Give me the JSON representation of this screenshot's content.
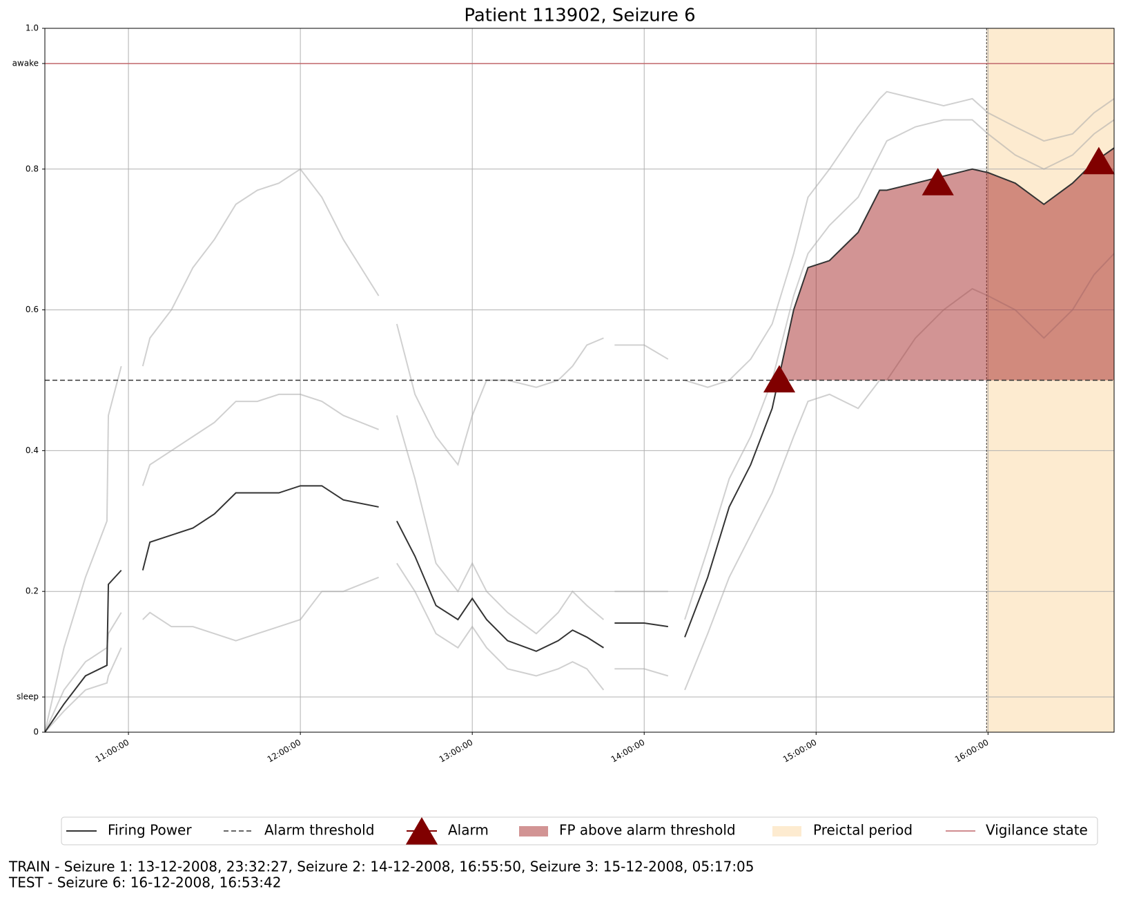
{
  "chart_data": {
    "type": "line",
    "title": "Patient 113902, Seizure 6",
    "x": [
      "10:30:50",
      "10:37:30",
      "10:45:00",
      "10:52:30",
      "10:53:00",
      "10:57:30",
      "11:01:00",
      "11:05:00",
      "11:07:30",
      "11:15:00",
      "11:22:30",
      "11:30:00",
      "11:37:30",
      "11:45:00",
      "11:52:30",
      "12:00:00",
      "12:07:30",
      "12:15:00",
      "12:27:20",
      "12:30:00",
      "12:33:40",
      "12:40:00",
      "12:47:20",
      "12:55:00",
      "13:00:00",
      "13:05:00",
      "13:12:20",
      "13:22:20",
      "13:30:00",
      "13:35:00",
      "13:40:00",
      "13:45:50",
      "13:47:40",
      "13:49:40",
      "14:00:00",
      "14:08:20",
      "14:11:00",
      "14:14:10",
      "14:22:10",
      "14:29:40",
      "14:37:10",
      "14:44:40",
      "14:52:10",
      "14:57:10",
      "15:04:40",
      "15:14:40",
      "15:22:10",
      "15:24:40",
      "15:34:40",
      "15:44:30",
      "15:54:30",
      "16:00:00",
      "16:09:30",
      "16:19:30",
      "16:29:30",
      "16:37:00",
      "16:44:00"
    ],
    "series": [
      {
        "name": "Firing Power",
        "color": "#333333",
        "values": [
          0.0,
          0.04,
          0.08,
          0.095,
          0.21,
          0.23,
          null,
          0.23,
          0.27,
          0.28,
          0.29,
          0.31,
          0.34,
          0.34,
          0.34,
          0.35,
          0.35,
          0.33,
          0.32,
          null,
          0.3,
          0.25,
          0.18,
          0.16,
          0.19,
          0.16,
          0.13,
          0.115,
          0.13,
          0.145,
          0.135,
          0.12,
          null,
          0.155,
          0.155,
          0.15,
          null,
          0.135,
          0.22,
          0.32,
          0.38,
          0.46,
          0.6,
          0.66,
          0.67,
          0.71,
          0.77,
          0.77,
          0.78,
          0.79,
          0.8,
          0.795,
          0.78,
          0.75,
          0.78,
          0.81,
          0.83
        ]
      }
    ],
    "ensemble_color": "#aaaaaa",
    "ensemble": [
      [
        0.0,
        0.12,
        0.22,
        0.3,
        0.45,
        0.52,
        null,
        0.52,
        0.56,
        0.6,
        0.66,
        0.7,
        0.75,
        0.77,
        0.78,
        0.8,
        0.76,
        0.7,
        0.62,
        null,
        0.58,
        0.48,
        0.42,
        0.38,
        0.45,
        0.5,
        0.5,
        0.49,
        0.5,
        0.52,
        0.55,
        0.56,
        null,
        0.55,
        0.55,
        0.53,
        null,
        0.5,
        0.49,
        0.5,
        0.53,
        0.58,
        0.68,
        0.76,
        0.8,
        0.86,
        0.9,
        0.91,
        0.9,
        0.89,
        0.9,
        0.88,
        0.86,
        0.84,
        0.85,
        0.88,
        0.9
      ],
      [
        0.0,
        0.06,
        0.1,
        0.12,
        0.14,
        0.17,
        null,
        0.35,
        0.38,
        0.4,
        0.42,
        0.44,
        0.47,
        0.47,
        0.48,
        0.48,
        0.47,
        0.45,
        0.43,
        null,
        0.45,
        0.36,
        0.24,
        0.2,
        0.24,
        0.2,
        0.17,
        0.14,
        0.17,
        0.2,
        0.18,
        0.16,
        null,
        0.2,
        0.2,
        0.2,
        null,
        0.16,
        0.26,
        0.36,
        0.42,
        0.5,
        0.62,
        0.68,
        0.72,
        0.76,
        0.82,
        0.84,
        0.86,
        0.87,
        0.87,
        0.85,
        0.82,
        0.8,
        0.82,
        0.85,
        0.87
      ],
      [
        0.0,
        0.03,
        0.06,
        0.07,
        0.08,
        0.12,
        null,
        0.16,
        0.17,
        0.15,
        0.15,
        0.14,
        0.13,
        0.14,
        0.15,
        0.16,
        0.2,
        0.2,
        0.22,
        null,
        0.24,
        0.2,
        0.14,
        0.12,
        0.15,
        0.12,
        0.09,
        0.08,
        0.09,
        0.1,
        0.09,
        0.06,
        null,
        0.09,
        0.09,
        0.08,
        null,
        0.06,
        0.14,
        0.22,
        0.28,
        0.34,
        0.42,
        0.47,
        0.48,
        0.46,
        0.5,
        0.5,
        0.56,
        0.6,
        0.63,
        0.62,
        0.6,
        0.56,
        0.6,
        0.65,
        0.68
      ]
    ],
    "threshold": {
      "name": "Alarm threshold",
      "value": 0.5,
      "color": "#333333"
    },
    "alarms": {
      "name": "Alarm",
      "color": "#800000",
      "x": [
        "14:47:10",
        "15:42:30",
        "16:38:40"
      ],
      "values": [
        0.5,
        0.78,
        0.81
      ]
    },
    "fp_fill": {
      "name": "FP above alarm threshold",
      "color": "#a52a2a"
    },
    "preictal": {
      "name": "Preictal period",
      "color": "#fdebd0",
      "x": [
        "15:59:30",
        "16:44:00"
      ]
    },
    "vigilance": {
      "name": "Vigilance state",
      "color": "#c0666a",
      "x": [
        "10:30:50",
        "16:44:00"
      ],
      "values": [
        0.95,
        0.95
      ]
    },
    "xlim": [
      "10:30:50",
      "16:44:00"
    ],
    "xticks": [
      "11:00:00",
      "12:00:00",
      "13:00:00",
      "14:00:00",
      "15:00:00",
      "16:00:00"
    ],
    "ylim": [
      0,
      1
    ],
    "yticks": [
      0,
      {
        "value": 0.05,
        "label": "sleep"
      },
      0.2,
      0.4,
      0.6,
      0.8,
      {
        "value": 0.95,
        "label": "awake"
      },
      {
        "value": 1,
        "label": "1.0"
      }
    ],
    "grid": true,
    "legend": "bottom"
  },
  "footer": [
    "TRAIN - Seizure 1: 13-12-2008, 23:32:27, Seizure 2: 14-12-2008, 16:55:50, Seizure 3: 15-12-2008, 05:17:05",
    "TEST - Seizure 6: 16-12-2008, 16:53:42"
  ]
}
